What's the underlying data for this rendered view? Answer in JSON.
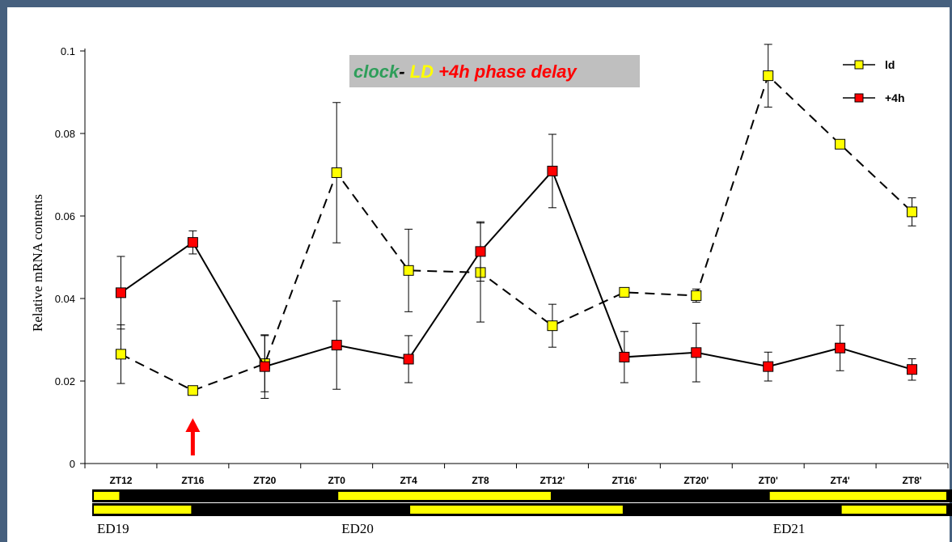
{
  "chart_data": {
    "type": "line",
    "title": "",
    "xlabel": "",
    "ylabel": "Relative mRNA contents",
    "ylim": [
      0,
      0.1
    ],
    "yticks": [
      "0",
      "0.02",
      "0.04",
      "0.06",
      "0.08",
      "0.1"
    ],
    "categories": [
      "ZT12",
      "ZT16",
      "ZT20",
      "ZT0",
      "ZT4",
      "ZT8",
      "ZT12'",
      "ZT16'",
      "ZT20'",
      "ZT0'",
      "ZT4'",
      "ZT8'"
    ],
    "series": [
      {
        "name": "ld",
        "style": "dashed",
        "marker_color": "#ffff00",
        "values": [
          0.0265,
          0.0177,
          0.0242,
          0.0705,
          0.0468,
          0.0463,
          0.0334,
          0.0415,
          0.0407,
          0.094,
          0.0774,
          0.061
        ],
        "errors": [
          0.0071,
          0.0,
          0.0068,
          0.017,
          0.01,
          0.012,
          0.0052,
          0.0,
          0.0016,
          0.0076,
          0.0,
          0.0034
        ]
      },
      {
        "name": "+4h",
        "style": "solid",
        "marker_color": "#ff0000",
        "values": [
          0.0414,
          0.0536,
          0.0235,
          0.0287,
          0.0253,
          0.0514,
          0.0709,
          0.0258,
          0.0269,
          0.0235,
          0.028,
          0.0228
        ],
        "errors": [
          0.0088,
          0.0028,
          0.0077,
          0.0107,
          0.0057,
          0.0072,
          0.0089,
          0.0062,
          0.0071,
          0.0035,
          0.0055,
          0.0026
        ]
      }
    ],
    "legend_position": "top-right",
    "grid": false,
    "annotation": {
      "parts": [
        {
          "text": "clock",
          "color": "#2e9e5a"
        },
        {
          "text": "- ",
          "color": "#000000"
        },
        {
          "text": "LD",
          "color": "#ffff00"
        },
        {
          "text": "  +4h phase delay",
          "color": "#ff0000"
        }
      ],
      "background": "#bfbfbf"
    },
    "arrow_at": "ZT16",
    "arrow_color": "#ff0000",
    "light_dark_bars": {
      "light_color": "#ffff00",
      "dark_color": "#000000",
      "row1_light_from_to": [
        [
          0,
          0.5
        ],
        [
          3.5,
          6.5
        ],
        [
          9.5,
          12
        ]
      ],
      "row2_light_from_to": [
        [
          0,
          1.5
        ],
        [
          4.5,
          7.5
        ],
        [
          10.5,
          12
        ]
      ]
    },
    "day_labels": [
      {
        "text": "ED19",
        "at": 0
      },
      {
        "text": "ED20",
        "at": 3.5
      },
      {
        "text": "ED21",
        "at": 9.5
      }
    ]
  }
}
